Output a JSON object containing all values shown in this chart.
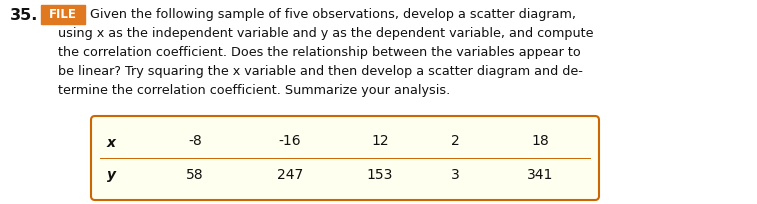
{
  "problem_number": "35.",
  "file_label": "FILE",
  "file_bg_color": "#e07820",
  "file_text_color": "#ffffff",
  "body_lines": [
    "Given the following sample of five observations, develop a scatter diagram,",
    "using x as the independent variable and y as the dependent variable, and compute",
    "the correlation coefficient. Does the relationship between the variables appear to",
    "be linear? Try squaring the x variable and then develop a scatter diagram and de-",
    "termine the correlation coefficient. Summarize your analysis."
  ],
  "table_x_label": "x",
  "table_y_label": "y",
  "x_values": [
    "-8",
    "-16",
    "12",
    "2",
    "18"
  ],
  "y_values": [
    "58",
    "247",
    "153",
    "3",
    "341"
  ],
  "table_bg_color": "#fffff0",
  "table_border_color": "#cc6600",
  "text_color": "#111111",
  "bg_color": "#ffffff",
  "font_size_body": 9.2,
  "font_size_table": 10.0,
  "font_size_number": 11.5,
  "font_size_file": 8.5
}
